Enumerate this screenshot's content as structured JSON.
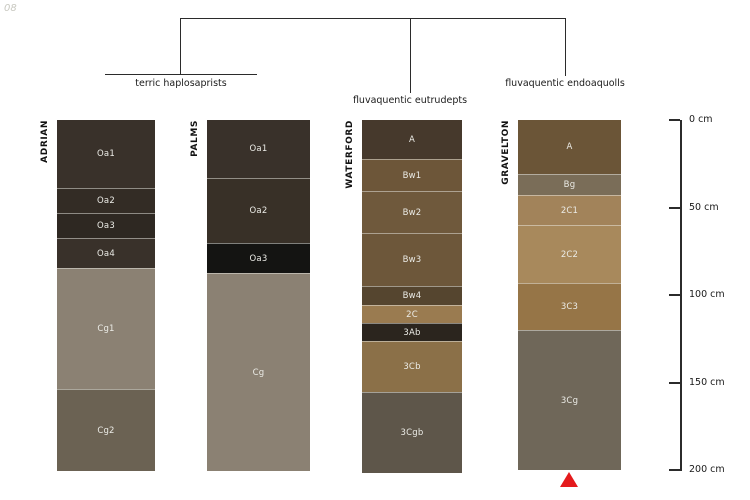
{
  "figure": {
    "corner_label": "08",
    "background": "#ffffff"
  },
  "classification_tree": {
    "groups": [
      {
        "label": "terric haplosaprists",
        "members": [
          "ADRIAN",
          "PALMS"
        ]
      },
      {
        "label": "fluvaquentic eutrudepts",
        "members": [
          "WATERFORD"
        ]
      },
      {
        "label": "fluvaquentic endoaquolls",
        "members": [
          "GRAVELTON"
        ]
      }
    ]
  },
  "depth_axis": {
    "unit": "cm",
    "min_cm": 0,
    "max_cm": 200,
    "ticks": [
      {
        "label": "0 cm",
        "cm": 0
      },
      {
        "label": "50 cm",
        "cm": 50
      },
      {
        "label": "100 cm",
        "cm": 100
      },
      {
        "label": "150 cm",
        "cm": 150
      },
      {
        "label": "200 cm",
        "cm": 200
      }
    ]
  },
  "profiles": [
    {
      "name": "ADRIAN",
      "horizons": [
        {
          "label": "Oa1",
          "thickness_cm": 39,
          "color": "#39312a"
        },
        {
          "label": "Oa2",
          "thickness_cm": 14,
          "color": "#332c25"
        },
        {
          "label": "Oa3",
          "thickness_cm": 14,
          "color": "#2e2822"
        },
        {
          "label": "Oa4",
          "thickness_cm": 17,
          "color": "#39312a"
        },
        {
          "label": "Cg1",
          "thickness_cm": 69,
          "color": "#8b8173"
        },
        {
          "label": "Cg2",
          "thickness_cm": 47,
          "color": "#6b6253"
        }
      ]
    },
    {
      "name": "PALMS",
      "horizons": [
        {
          "label": "Oa1",
          "thickness_cm": 33,
          "color": "#39312a"
        },
        {
          "label": "Oa2",
          "thickness_cm": 37,
          "color": "#383027"
        },
        {
          "label": "Oa3",
          "thickness_cm": 17,
          "color": "#141412"
        },
        {
          "label": "Cg",
          "thickness_cm": 113,
          "color": "#8b8173"
        }
      ]
    },
    {
      "name": "WATERFORD",
      "horizons": [
        {
          "label": "A",
          "thickness_cm": 22,
          "color": "#46392c"
        },
        {
          "label": "Bw1",
          "thickness_cm": 18,
          "color": "#6d5639"
        },
        {
          "label": "Bw2",
          "thickness_cm": 24,
          "color": "#6f593c"
        },
        {
          "label": "Bw3",
          "thickness_cm": 30,
          "color": "#6d573a"
        },
        {
          "label": "Bw4",
          "thickness_cm": 11,
          "color": "#55452f"
        },
        {
          "label": "2C",
          "thickness_cm": 10,
          "color": "#9a7b50"
        },
        {
          "label": "3Ab",
          "thickness_cm": 10,
          "color": "#2b251e"
        },
        {
          "label": "3Cb",
          "thickness_cm": 29,
          "color": "#8b7048"
        },
        {
          "label": "3Cgb",
          "thickness_cm": 46,
          "color": "#5e564a"
        }
      ]
    },
    {
      "name": "GRAVELTON",
      "horizons": [
        {
          "label": "A",
          "thickness_cm": 31,
          "color": "#6b5537"
        },
        {
          "label": "Bg",
          "thickness_cm": 12,
          "color": "#7a6d58"
        },
        {
          "label": "2C1",
          "thickness_cm": 17,
          "color": "#a2835a"
        },
        {
          "label": "2C2",
          "thickness_cm": 33,
          "color": "#a8895c"
        },
        {
          "label": "3C3",
          "thickness_cm": 27,
          "color": "#967547"
        },
        {
          "label": "3Cg",
          "thickness_cm": 80,
          "color": "#6f6759"
        }
      ]
    }
  ],
  "marker": {
    "type": "triangle-up",
    "color": "#e41a1c",
    "under_profile": "GRAVELTON"
  }
}
